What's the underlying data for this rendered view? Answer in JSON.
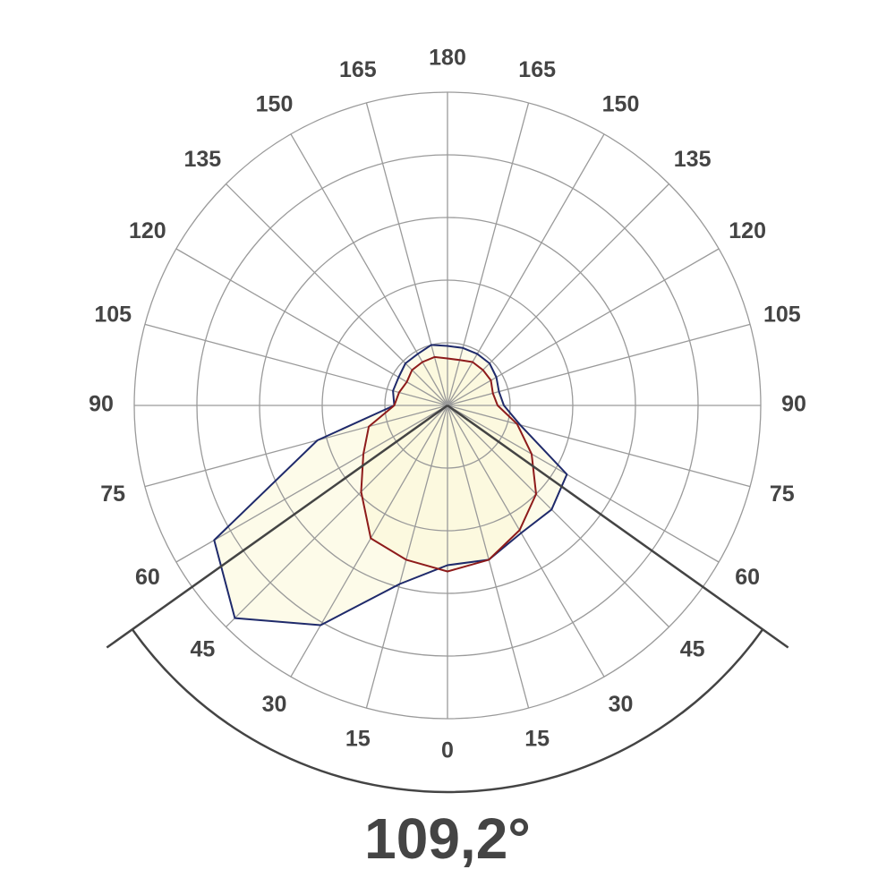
{
  "chart_data": {
    "type": "polar",
    "angles": [
      -165,
      -150,
      -135,
      -120,
      -105,
      -90,
      -75,
      -60,
      -45,
      -30,
      -15,
      0,
      15,
      30,
      45,
      60,
      75,
      90,
      105,
      120,
      135,
      150,
      165,
      180
    ],
    "series": [
      {
        "color": "#1f2a6b",
        "values": [
          19,
          19,
          19,
          18,
          17,
          18,
          24,
          44,
          47,
          47,
          51,
          51,
          59,
          81,
          96,
          86,
          43,
          17,
          18,
          18,
          19,
          19,
          20,
          19
        ]
      },
      {
        "color": "#8e1b1b",
        "values": [
          15,
          16,
          16,
          16,
          15,
          16,
          23,
          31,
          40,
          46,
          51,
          53,
          51,
          49,
          39,
          31,
          26,
          17,
          16,
          15,
          16,
          16,
          16,
          15
        ]
      }
    ],
    "rlim": [
      0,
      100
    ],
    "rticks": [
      20,
      40,
      60,
      80,
      100
    ],
    "angle_ticks": [
      0,
      15,
      30,
      45,
      60,
      75,
      90,
      105,
      120,
      135,
      150,
      165,
      180,
      {
        "value": -15,
        "label": "15"
      },
      {
        "value": -30,
        "label": "30"
      },
      {
        "value": -45,
        "label": "45"
      },
      {
        "value": -60,
        "label": "60"
      },
      {
        "value": -75,
        "label": "75"
      },
      {
        "value": -90,
        "label": "90"
      },
      {
        "value": -105,
        "label": "105"
      },
      {
        "value": -120,
        "label": "120"
      },
      {
        "value": -135,
        "label": "135"
      },
      {
        "value": -150,
        "label": "150"
      },
      {
        "value": -165,
        "label": "165"
      }
    ],
    "beam_angle": {
      "value": 109.2,
      "label": "109,2°"
    }
  }
}
